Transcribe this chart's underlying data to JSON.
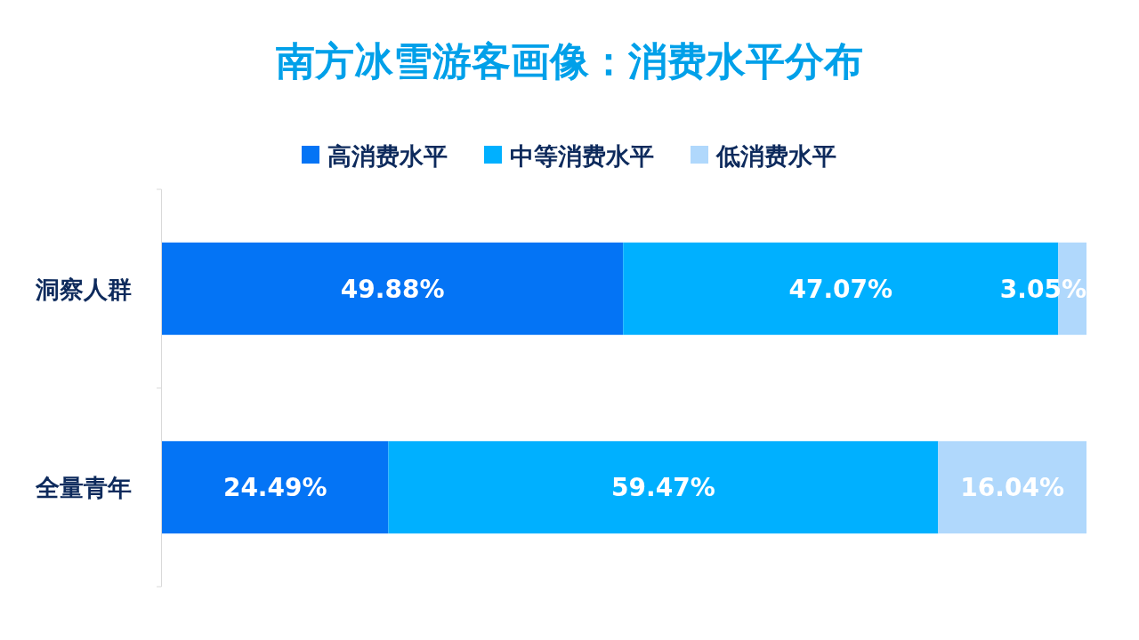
{
  "chart_data": {
    "type": "bar",
    "orientation": "horizontal",
    "stacked": true,
    "title": "南方冰雪游客画像：消费水平分布",
    "categories": [
      "洞察人群",
      "全量青年"
    ],
    "series": [
      {
        "name": "高消费水平",
        "color": "#0474f5",
        "values": [
          49.88,
          24.49
        ],
        "value_labels": [
          "49.88%",
          "24.49%"
        ]
      },
      {
        "name": "中等消费水平",
        "color": "#00b0ff",
        "values": [
          47.07,
          59.47
        ],
        "value_labels": [
          "47.07%",
          "59.47%"
        ]
      },
      {
        "name": "低消费水平",
        "color": "#b0d8fc",
        "values": [
          3.05,
          16.04
        ],
        "value_labels": [
          "3.05%",
          "16.04%"
        ]
      }
    ],
    "legend": "top"
  }
}
